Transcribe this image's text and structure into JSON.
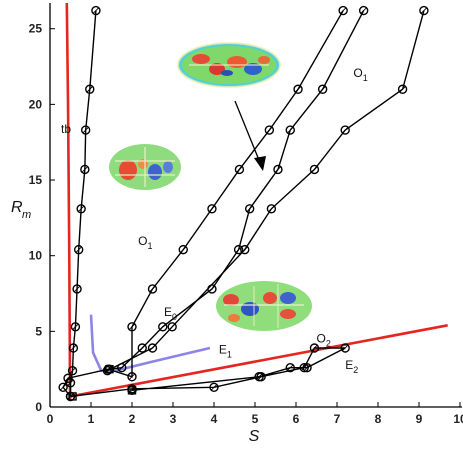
{
  "chart_data": {
    "type": "line",
    "xlabel": "S",
    "ylabel": "R",
    "ylabel_sub": "m",
    "xlim": [
      0,
      10
    ],
    "ylim": [
      0,
      26.7
    ],
    "x_ticks": [
      "0",
      "1",
      "2",
      "3",
      "4",
      "5",
      "6",
      "7",
      "8",
      "9",
      "10"
    ],
    "y_ticks": [
      "0",
      "5",
      "10",
      "15",
      "20",
      "25"
    ],
    "x_tick_values": [
      0,
      1,
      2,
      3,
      4,
      5,
      6,
      7,
      8,
      9,
      10
    ],
    "y_tick_values": [
      0,
      5,
      10,
      15,
      20,
      25
    ],
    "grid": false,
    "colors": {
      "series": "#000000",
      "boundary": "#e3261f",
      "e1_curve": "#8c84e6"
    },
    "series": [
      {
        "values": [
          [
            0.5,
            0.7
          ],
          [
            0.5,
            1.6
          ],
          [
            0.55,
            2.4
          ],
          [
            0.57,
            3.9
          ],
          [
            0.62,
            5.3
          ],
          [
            0.66,
            7.8
          ],
          [
            0.7,
            10.4
          ],
          [
            0.76,
            13.1
          ],
          [
            0.85,
            15.7
          ],
          [
            0.87,
            18.3
          ],
          [
            0.97,
            21.0
          ],
          [
            1.12,
            26.2
          ]
        ]
      },
      {
        "values": [
          [
            0.5,
            0.7
          ],
          [
            0.32,
            1.3
          ],
          [
            0.44,
            1.9
          ],
          [
            1.42,
            2.5
          ],
          [
            2.0,
            2.0
          ],
          [
            2.0,
            5.3
          ],
          [
            2.5,
            7.8
          ],
          [
            3.25,
            10.4
          ],
          [
            3.95,
            13.1
          ],
          [
            4.62,
            15.7
          ],
          [
            5.35,
            18.3
          ],
          [
            6.05,
            21.0
          ],
          [
            7.15,
            26.2
          ]
        ]
      },
      {
        "values": [
          [
            1.45,
            2.5
          ],
          [
            1.75,
            2.6
          ],
          [
            2.25,
            3.9
          ],
          [
            2.75,
            5.3
          ],
          [
            3.95,
            7.8
          ],
          [
            4.6,
            10.4
          ],
          [
            4.87,
            13.1
          ],
          [
            5.56,
            15.7
          ],
          [
            5.86,
            18.3
          ],
          [
            6.65,
            21.0
          ],
          [
            7.65,
            26.2
          ]
        ]
      },
      {
        "values": [
          [
            1.4,
            2.4
          ],
          [
            2.5,
            3.9
          ],
          [
            2.98,
            5.3
          ],
          [
            4.75,
            10.4
          ],
          [
            5.4,
            13.1
          ],
          [
            6.45,
            15.7
          ],
          [
            7.2,
            18.3
          ],
          [
            8.6,
            21.0
          ],
          [
            9.12,
            26.2
          ]
        ]
      },
      {
        "values": [
          [
            0.5,
            0.7
          ],
          [
            2.0,
            1.2
          ],
          [
            4.0,
            1.3
          ],
          [
            5.15,
            2.0
          ],
          [
            6.2,
            2.6
          ],
          [
            6.45,
            3.9
          ],
          [
            7.2,
            3.9
          ],
          [
            6.27,
            2.6
          ],
          [
            5.86,
            2.6
          ],
          [
            5.1,
            2.0
          ],
          [
            2.0,
            1.1
          ]
        ]
      }
    ],
    "boundaries": [
      {
        "label": "tb",
        "values": [
          [
            0.49,
            0.5
          ],
          [
            0.47,
            10
          ],
          [
            0.44,
            20
          ],
          [
            0.41,
            26.7
          ]
        ]
      },
      {
        "values": [
          [
            0.5,
            0.7
          ],
          [
            9.7,
            5.4
          ]
        ]
      }
    ],
    "e1_curve": [
      [
        1.0,
        6.1
      ],
      [
        1.05,
        3.6
      ],
      [
        1.25,
        2.4
      ],
      [
        1.6,
        2.4
      ],
      [
        2.5,
        3.0
      ],
      [
        3.9,
        3.9
      ]
    ],
    "annotations": [
      {
        "text": "O",
        "sub": "1",
        "x": 2.15,
        "y": 10.7
      },
      {
        "text": "O",
        "sub": "1",
        "x": 7.4,
        "y": 21.8
      },
      {
        "text": "E",
        "sub": "0",
        "x": 2.78,
        "y": 6.0
      },
      {
        "text": "E",
        "sub": "1",
        "x": 4.12,
        "y": 3.55
      },
      {
        "text": "O",
        "sub": "2",
        "x": 6.5,
        "y": 4.25
      },
      {
        "text": "E",
        "sub": "2",
        "x": 7.2,
        "y": 2.5
      }
    ]
  }
}
